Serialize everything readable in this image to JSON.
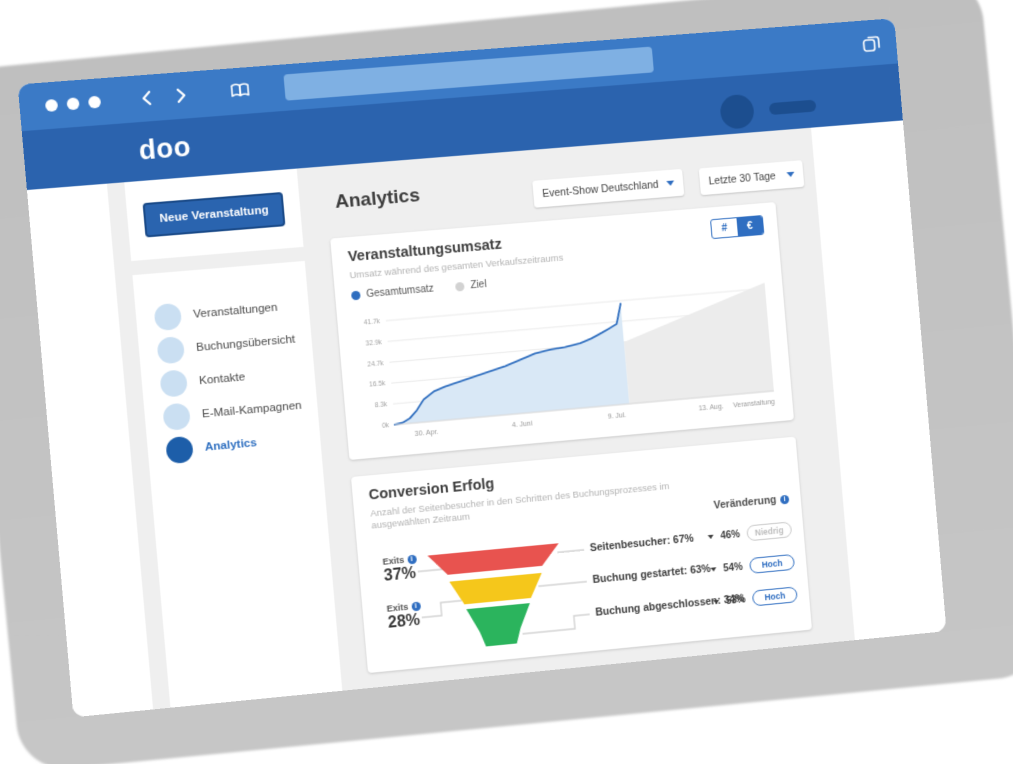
{
  "browser": {
    "back_icon": "chevron-left",
    "forward_icon": "chevron-right",
    "bookmarks_icon": "open-book",
    "tabs_icon": "stacked-squares",
    "address_value": ""
  },
  "app": {
    "logo": "doo",
    "page_title": "Analytics",
    "sidebar": {
      "new_event_button": "Neue Veranstaltung",
      "items": [
        {
          "label": "Veranstaltungen",
          "active": false
        },
        {
          "label": "Buchungsübersicht",
          "active": false
        },
        {
          "label": "Kontakte",
          "active": false
        },
        {
          "label": "E-Mail-Kampagnen",
          "active": false
        },
        {
          "label": "Analytics",
          "active": true
        }
      ]
    },
    "filters": {
      "event": "Event-Show Deutschland",
      "range": "Letzte 30 Tage"
    },
    "revenue_card": {
      "title": "Veranstaltungsumsatz",
      "subtitle": "Umsatz während des gesamten Verkaufszeitraums",
      "legend": [
        {
          "label": "Gesamtumsatz",
          "color": "#2f6ebf"
        },
        {
          "label": "Ziel",
          "color": "#d2d2d2"
        }
      ],
      "unit_toggle": {
        "options": [
          "#",
          "€"
        ],
        "selected": "€"
      }
    },
    "conversion_card": {
      "title": "Conversion Erfolg",
      "subtitle": "Anzahl der Seitenbesucher in den Schritten des Buchungsprozesses im ausgewählten Zeitraum",
      "change_header": "Veränderung",
      "rows": [
        {
          "label": "Seitenbesucher: 67%",
          "change": "46%",
          "badge": "Niedrig"
        },
        {
          "label": "Buchung gestartet: 63%",
          "change": "54%",
          "badge": "Hoch"
        },
        {
          "label": "Buchung abgeschlossen: 34%",
          "change": "53%",
          "badge": "Hoch"
        }
      ],
      "exits": [
        {
          "label": "Exits",
          "value": "37%"
        },
        {
          "label": "Exits",
          "value": "28%"
        }
      ]
    }
  },
  "chart_data": [
    {
      "type": "area",
      "title": "Veranstaltungsumsatz",
      "subtitle": "Umsatz während des gesamten Verkaufszeitraums",
      "legend_position": "top-left",
      "grid": true,
      "ylim": [
        0,
        41.7
      ],
      "y_ticks": [
        "0k",
        "8.3k",
        "16.5k",
        "24.7k",
        "32.9k",
        "41.7k"
      ],
      "x_ticks": [
        "30. Apr.",
        "4. Juni",
        "9. Jul.",
        "13. Aug.",
        "Veranstaltung"
      ],
      "series": [
        {
          "name": "Gesamtumsatz",
          "color": "#2f6ebf",
          "fill": "#d9e8f6",
          "x_pct": [
            0,
            2,
            4,
            6,
            8,
            11,
            14,
            18,
            22,
            26,
            30,
            34,
            38,
            42,
            46,
            50,
            53,
            56,
            58,
            60,
            61.5
          ],
          "values": [
            0,
            0.5,
            2,
            5,
            9,
            12,
            13.5,
            15,
            16.5,
            18,
            19.5,
            21.5,
            23.5,
            24.5,
            25,
            26,
            27.5,
            29.5,
            31,
            32.5,
            40.5
          ]
        },
        {
          "name": "Ziel",
          "color": "#ececec",
          "x_pct": [
            61.5,
            100
          ],
          "values": [
            25,
            44
          ]
        }
      ]
    },
    {
      "type": "funnel",
      "title": "Conversion Erfolg",
      "stages": [
        {
          "label": "Seitenbesucher",
          "value_pct": 67,
          "color": "#e8534f",
          "change_pct": -46,
          "change_level": "Niedrig"
        },
        {
          "label": "Buchung gestartet",
          "value_pct": 63,
          "color": "#f5c71b",
          "change_pct": -54,
          "change_level": "Hoch"
        },
        {
          "label": "Buchung abgeschlossen",
          "value_pct": 34,
          "color": "#2bb45d",
          "change_pct": -53,
          "change_level": "Hoch"
        }
      ],
      "exits_pct": [
        37,
        28
      ]
    }
  ],
  "colors": {
    "toolbar_blue": "#3b7ac6",
    "header_blue": "#2b63ae",
    "address_blue": "#7fb0e3",
    "navy": "#1c4e8f",
    "accent_blue": "#2f6ec1",
    "page_gray": "#efefef",
    "funnel_red": "#e8534f",
    "funnel_yellow": "#f5c71b",
    "funnel_green": "#2bb45d",
    "shadow_gray": "#c2c2c2"
  }
}
